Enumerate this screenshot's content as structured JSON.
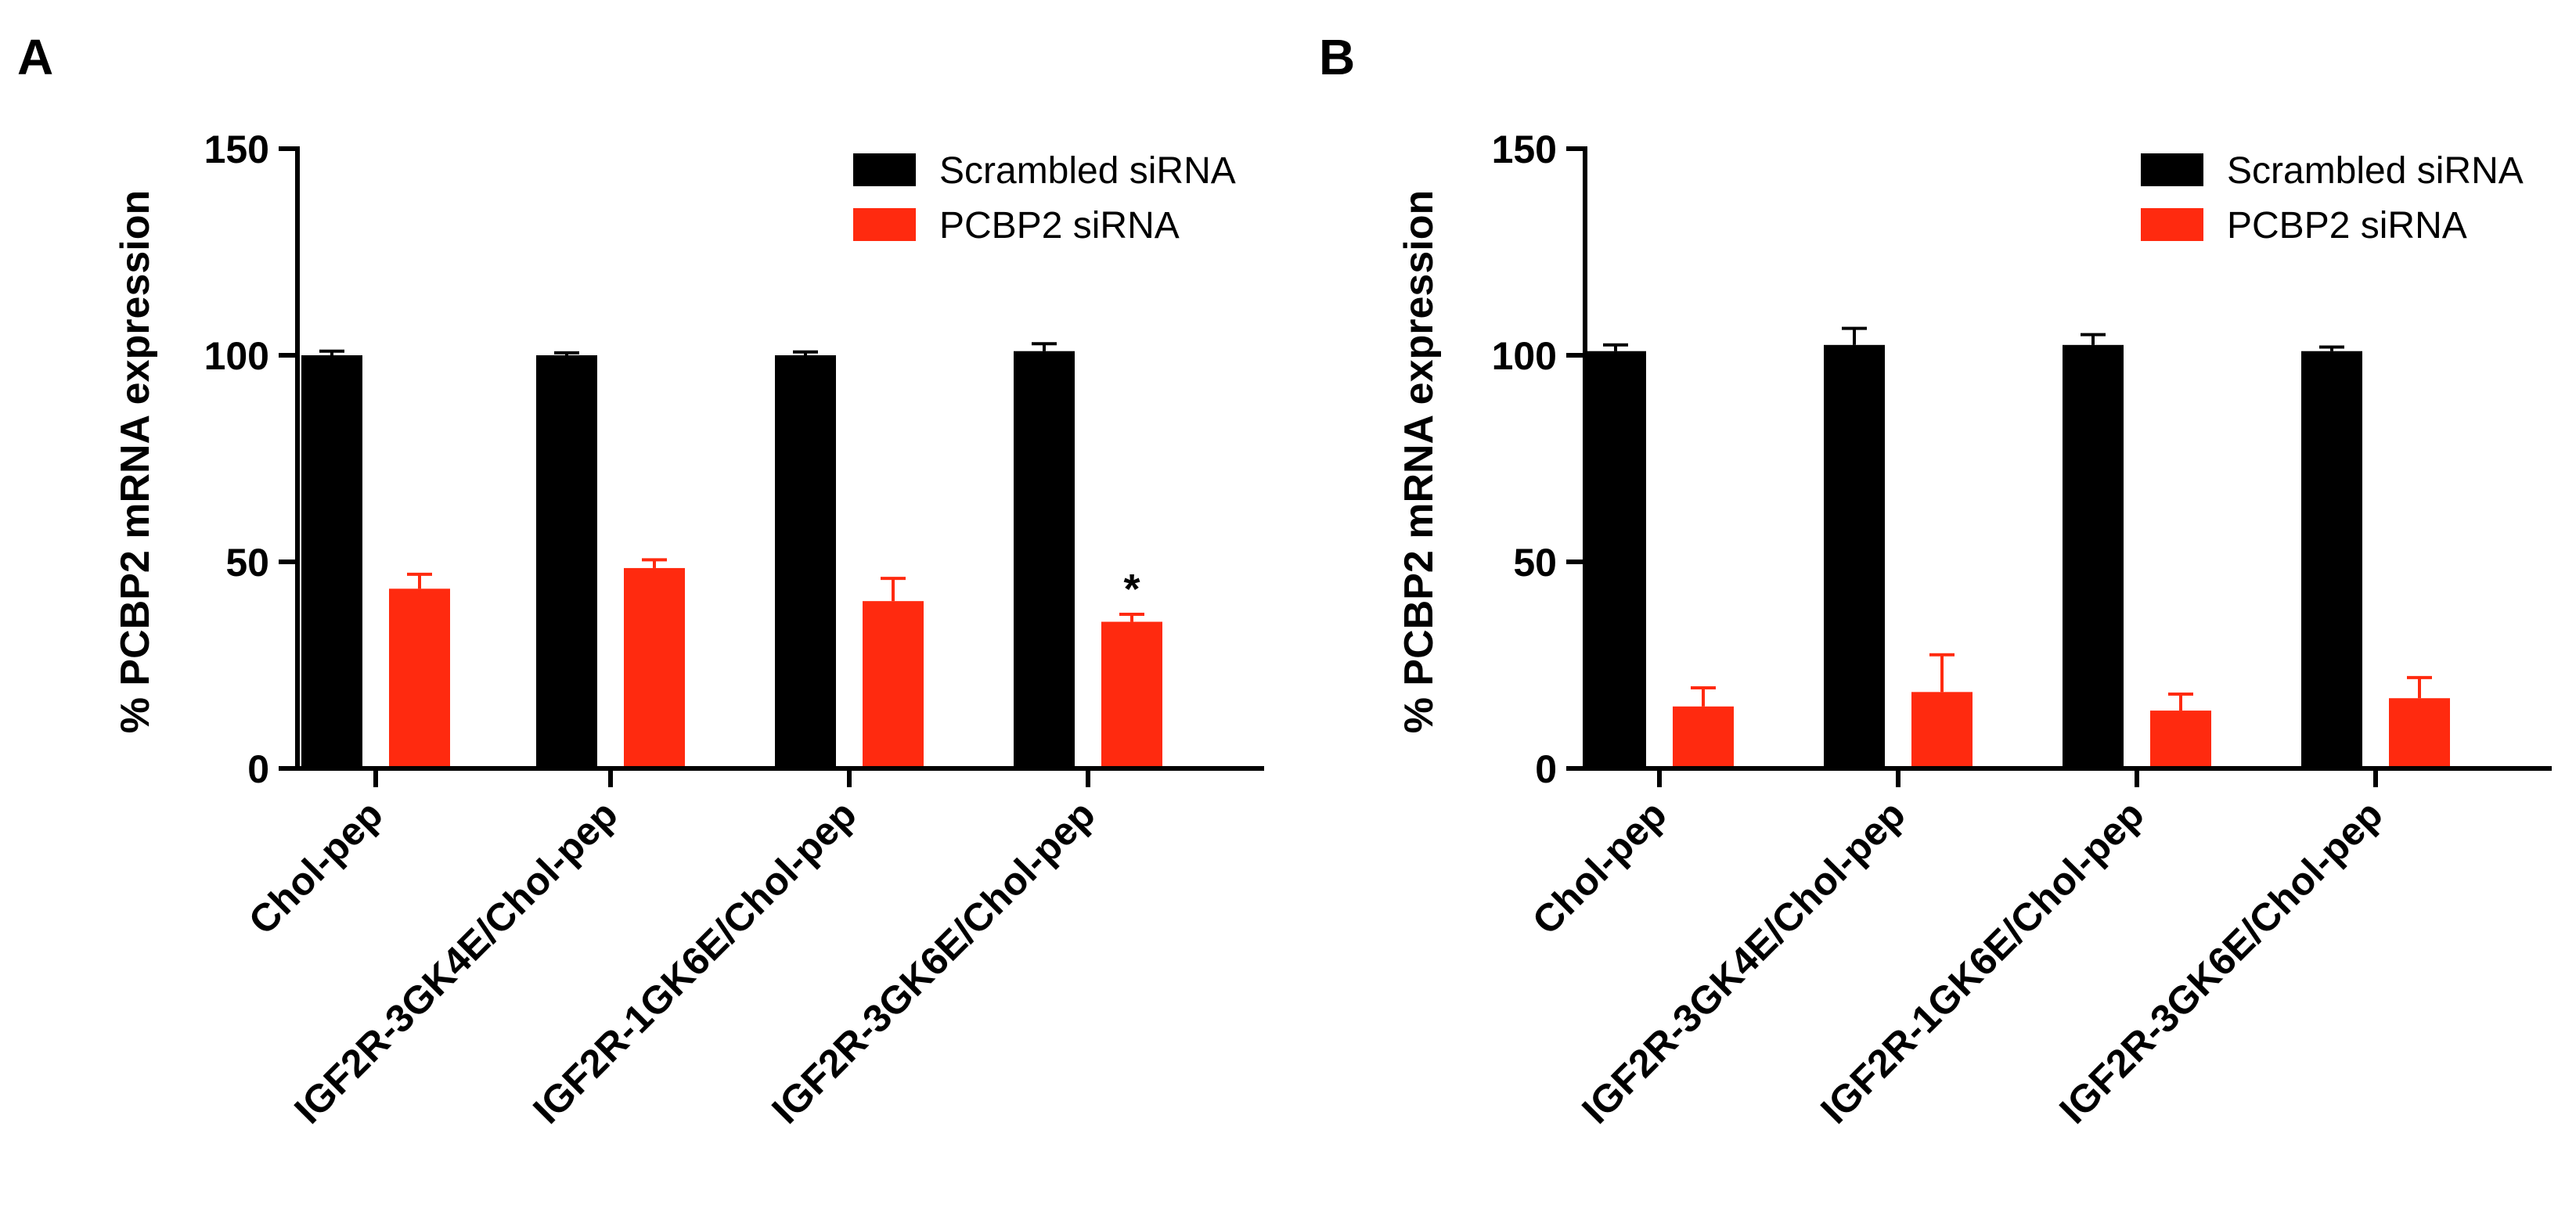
{
  "chart_data": [
    {
      "panel_label": "A",
      "type": "bar",
      "ylabel": "% PCBP2 mRNA expression",
      "ylim": [
        0,
        150
      ],
      "yticks": [
        0,
        50,
        100,
        150
      ],
      "categories": [
        "Chol-pep",
        "IGF2R-3GK4E/Chol-pep",
        "IGF2R-1GK6E/Chol-pep",
        "IGF2R-3GK6E/Chol-pep"
      ],
      "series": [
        {
          "name": "Scrambled siRNA",
          "color": "#000000",
          "values": [
            100,
            100,
            100,
            101
          ],
          "errors": [
            1,
            0.6,
            0.8,
            1.8
          ]
        },
        {
          "name": "PCBP2 siRNA",
          "color": "#ff2a0f",
          "values": [
            43.5,
            48.5,
            40.5,
            35.5
          ],
          "errors": [
            3.5,
            2,
            5.5,
            1.8
          ]
        }
      ],
      "annotations": [
        {
          "category": "IGF2R-3GK6E/Chol-pep",
          "series": "PCBP2 siRNA",
          "text": "*"
        }
      ],
      "legend": "top-right"
    },
    {
      "panel_label": "B",
      "type": "bar",
      "ylabel": "% PCBP2 mRNA expression",
      "ylim": [
        0,
        150
      ],
      "yticks": [
        0,
        50,
        100,
        150
      ],
      "categories": [
        "Chol-pep",
        "IGF2R-3GK4E/Chol-pep",
        "IGF2R-1GK6E/Chol-pep",
        "IGF2R-3GK6E/Chol-pep"
      ],
      "series": [
        {
          "name": "Scrambled siRNA",
          "color": "#000000",
          "values": [
            101,
            102.5,
            102.5,
            101
          ],
          "errors": [
            1.5,
            4,
            2.5,
            1
          ]
        },
        {
          "name": "PCBP2 siRNA",
          "color": "#ff2a0f",
          "values": [
            15,
            18.5,
            14,
            17
          ],
          "errors": [
            4.5,
            9,
            4,
            5
          ]
        }
      ],
      "annotations": [],
      "legend": "top-right"
    }
  ]
}
